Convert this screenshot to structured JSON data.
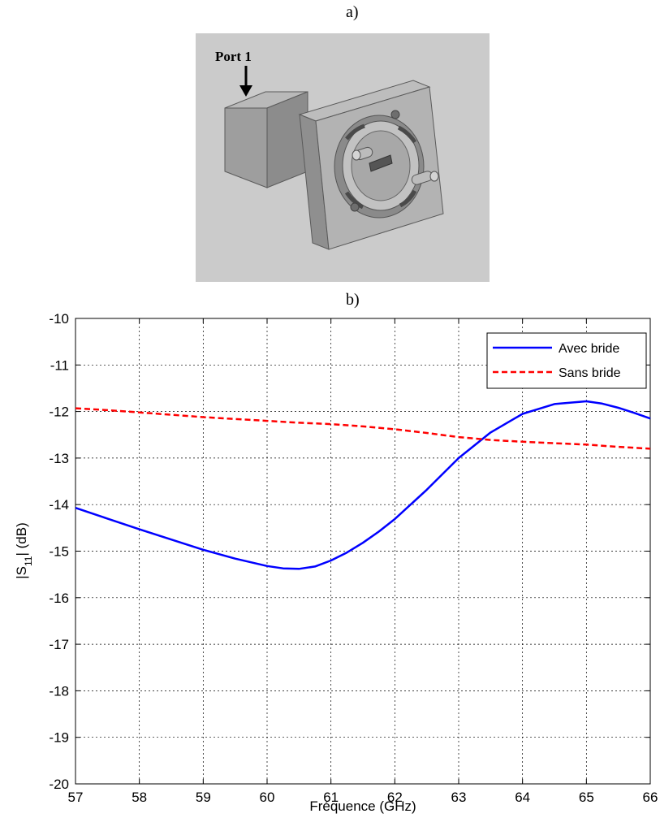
{
  "panel_a": {
    "label": "a)",
    "port_label": "Port 1"
  },
  "panel_b": {
    "label": "b)"
  },
  "colors": {
    "avec_bride": "#0000ff",
    "sans_bride": "#ff0000",
    "render_background": "#c9c9c9",
    "model_face": "#a9a9a9"
  },
  "chart_data": {
    "type": "line",
    "title": "",
    "xlabel": "Fréquence (GHz)",
    "ylabel": "|S11| (dB)",
    "ylabel_parts": {
      "main": "|S",
      "sub": "11",
      "tail": "| (dB)"
    },
    "xlim": [
      57,
      66
    ],
    "ylim": [
      -20,
      -10
    ],
    "xticks": [
      57,
      58,
      59,
      60,
      61,
      62,
      63,
      64,
      65,
      66
    ],
    "yticks": [
      -20,
      -19,
      -18,
      -17,
      -16,
      -15,
      -14,
      -13,
      -12,
      -11,
      -10
    ],
    "grid": true,
    "legend_position": "top-right",
    "series": [
      {
        "name": "Avec bride",
        "color": "#0000ff",
        "style": "solid",
        "x": [
          57,
          57.5,
          58,
          58.5,
          59,
          59.5,
          60,
          60.25,
          60.5,
          60.75,
          61,
          61.25,
          61.5,
          61.75,
          62,
          62.5,
          63,
          63.5,
          64,
          64.5,
          65,
          65.25,
          65.5,
          65.75,
          66
        ],
        "y": [
          -14.07,
          -14.3,
          -14.53,
          -14.75,
          -14.97,
          -15.16,
          -15.32,
          -15.37,
          -15.38,
          -15.33,
          -15.2,
          -15.03,
          -14.82,
          -14.58,
          -14.31,
          -13.68,
          -13.0,
          -12.45,
          -12.05,
          -11.84,
          -11.78,
          -11.83,
          -11.92,
          -12.03,
          -12.15
        ]
      },
      {
        "name": "Sans bride",
        "color": "#ff0000",
        "style": "dashed",
        "x": [
          57,
          57.5,
          58,
          58.5,
          59,
          59.5,
          60,
          60.5,
          61,
          61.5,
          62,
          62.5,
          63,
          63.5,
          64,
          64.5,
          65,
          65.5,
          66
        ],
        "y": [
          -11.93,
          -11.97,
          -12.02,
          -12.07,
          -12.12,
          -12.16,
          -12.2,
          -12.24,
          -12.27,
          -12.32,
          -12.38,
          -12.46,
          -12.55,
          -12.61,
          -12.65,
          -12.68,
          -12.71,
          -12.76,
          -12.8
        ]
      }
    ]
  }
}
